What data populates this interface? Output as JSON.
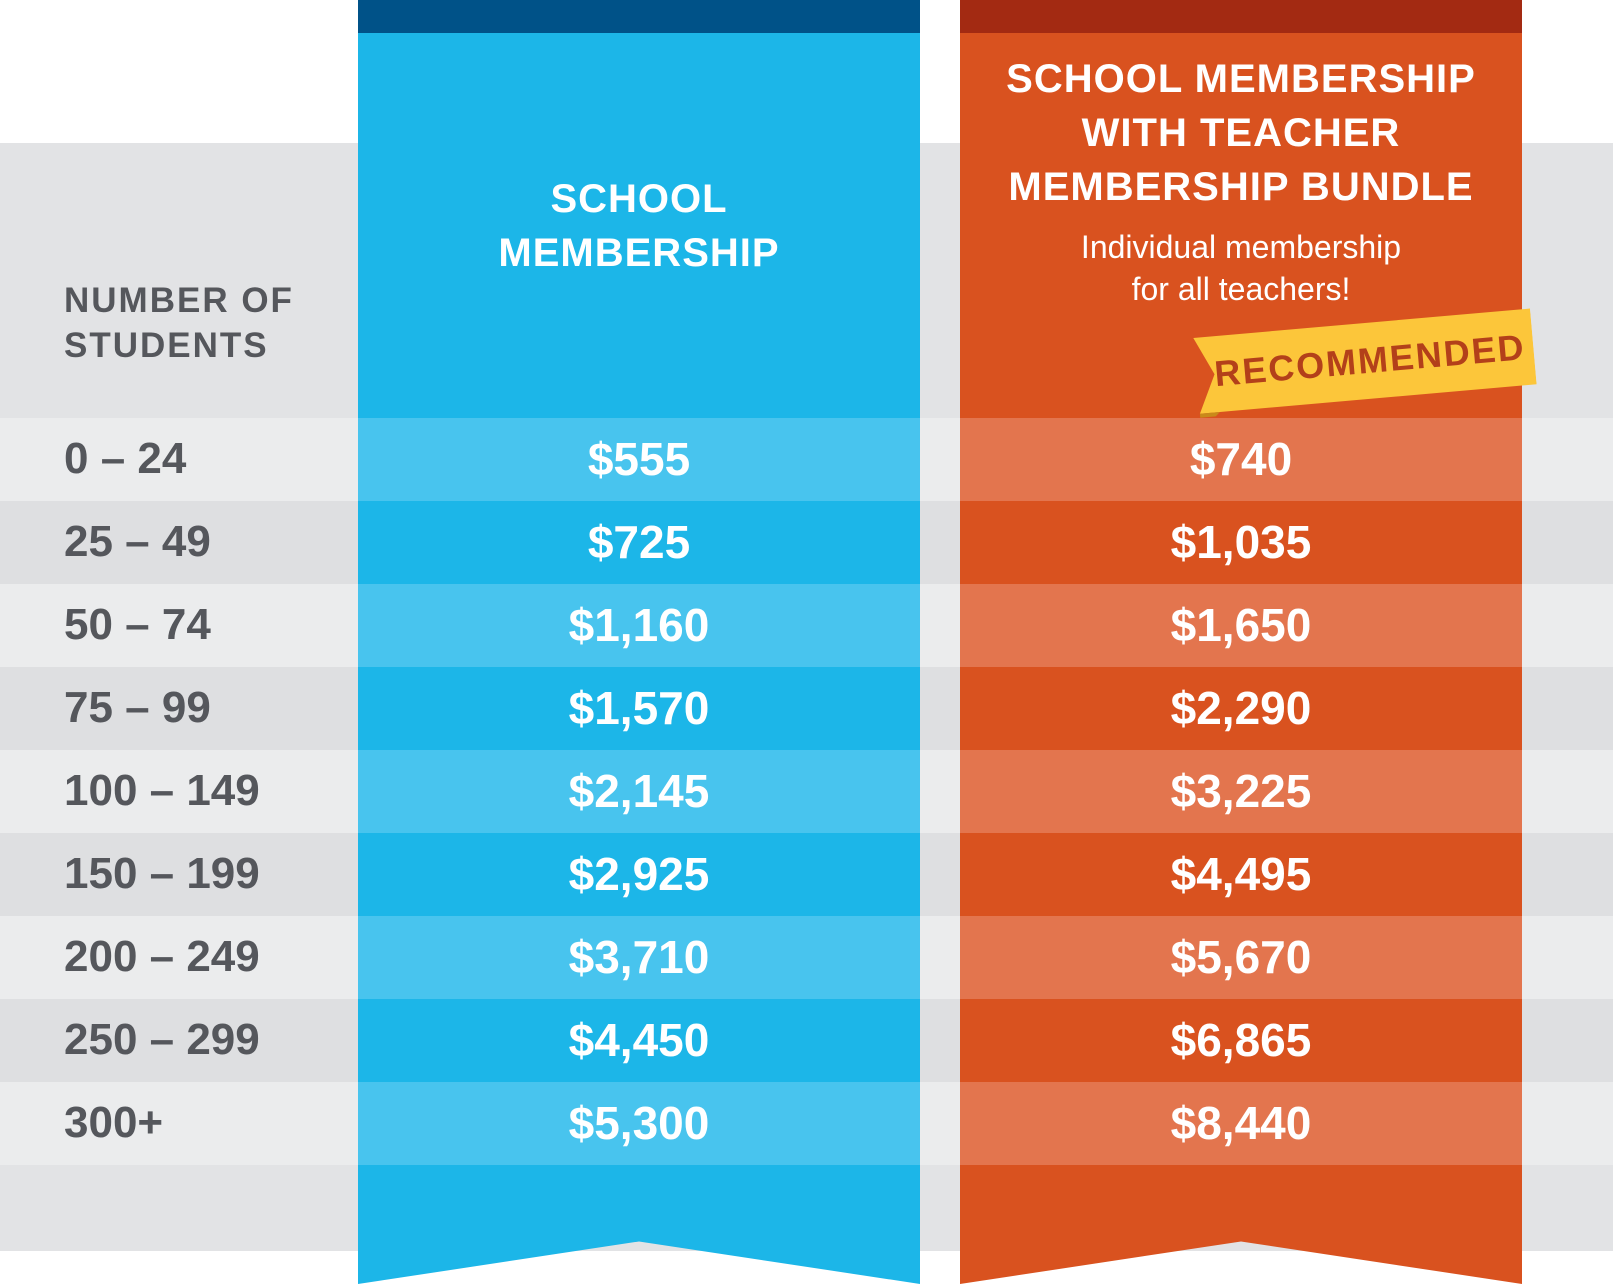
{
  "row_header": {
    "line1": "NUMBER OF",
    "line2": "STUDENTS"
  },
  "columns": {
    "school": {
      "title_line1": "SCHOOL",
      "title_line2": "MEMBERSHIP"
    },
    "bundle": {
      "title_line1": "SCHOOL MEMBERSHIP",
      "title_line2": "WITH TEACHER",
      "title_line3": "MEMBERSHIP BUNDLE",
      "subtitle_line1": "Individual membership",
      "subtitle_line2": "for all teachers!",
      "badge": "RECOMMENDED"
    }
  },
  "rows": [
    {
      "students": "0 – 24",
      "school": "$555",
      "bundle": "$740"
    },
    {
      "students": "25 – 49",
      "school": "$725",
      "bundle": "$1,035"
    },
    {
      "students": "50 – 74",
      "school": "$1,160",
      "bundle": "$1,650"
    },
    {
      "students": "75 – 99",
      "school": "$1,570",
      "bundle": "$2,290"
    },
    {
      "students": "100 – 149",
      "school": "$2,145",
      "bundle": "$3,225"
    },
    {
      "students": "150 – 199",
      "school": "$2,925",
      "bundle": "$4,495"
    },
    {
      "students": "200 – 249",
      "school": "$3,710",
      "bundle": "$5,670"
    },
    {
      "students": "250 – 299",
      "school": "$4,450",
      "bundle": "$6,865"
    },
    {
      "students": "300+",
      "school": "$5,300",
      "bundle": "$8,440"
    }
  ],
  "colors": {
    "school_accent": "#1cb6e8",
    "bundle_accent": "#d9521f",
    "badge": "#fcc63a"
  }
}
